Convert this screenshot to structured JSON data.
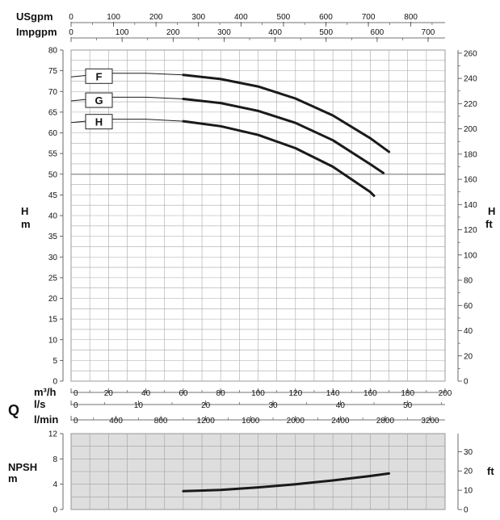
{
  "chart_data": [
    {
      "type": "line",
      "panel": "head",
      "x_unit": "m3/h",
      "xlim": [
        0,
        200
      ],
      "ylim_m": [
        0,
        80
      ],
      "ylim_ft": [
        0,
        260
      ],
      "left_ticks": [
        "0",
        "5",
        "10",
        "15",
        "20",
        "25",
        "30",
        "35",
        "40",
        "45",
        "50",
        "55",
        "60",
        "65",
        "70",
        "75",
        "80"
      ],
      "right_ticks": [
        "0",
        "20",
        "40",
        "60",
        "80",
        "100",
        "120",
        "140",
        "160",
        "180",
        "200",
        "220",
        "240",
        "260"
      ],
      "left_label": [
        "H",
        "m"
      ],
      "right_label": [
        "H",
        "ft"
      ],
      "reference_line_m": 50,
      "series": [
        {
          "name": "F",
          "dashed_x": [
            0,
            20,
            40,
            60
          ],
          "dashed_y": [
            73.5,
            74.4,
            74.4,
            74.0
          ],
          "x": [
            60,
            80,
            100,
            120,
            140,
            160,
            170
          ],
          "y": [
            74.0,
            73.0,
            71.2,
            68.3,
            64.2,
            58.7,
            55.4
          ]
        },
        {
          "name": "G",
          "dashed_x": [
            0,
            20,
            40,
            60
          ],
          "dashed_y": [
            67.7,
            68.6,
            68.6,
            68.2
          ],
          "x": [
            60,
            80,
            100,
            120,
            140,
            160,
            167
          ],
          "y": [
            68.2,
            67.2,
            65.3,
            62.4,
            58.2,
            52.4,
            50.3
          ]
        },
        {
          "name": "H",
          "dashed_x": [
            0,
            20,
            40,
            60
          ],
          "dashed_y": [
            62.5,
            63.3,
            63.3,
            62.8
          ],
          "x": [
            60,
            80,
            100,
            120,
            140,
            160,
            162
          ],
          "y": [
            62.8,
            61.6,
            59.5,
            56.3,
            51.8,
            45.7,
            44.8
          ]
        }
      ]
    },
    {
      "type": "line",
      "panel": "npsh",
      "ylim_m": [
        0,
        12
      ],
      "ylim_ft": [
        0,
        40
      ],
      "left_ticks": [
        "0",
        "4",
        "8",
        "12"
      ],
      "right_ticks": [
        "0",
        "10",
        "20",
        "30"
      ],
      "left_label": [
        "NPSH",
        "m"
      ],
      "right_label": "ft",
      "series": [
        {
          "x": [
            60,
            80,
            100,
            120,
            140,
            160,
            170
          ],
          "y": [
            2.9,
            3.1,
            3.5,
            4.0,
            4.6,
            5.3,
            5.7
          ]
        }
      ]
    }
  ],
  "axes": {
    "usgpm": {
      "label": "USgpm",
      "ticks": [
        "0",
        "100",
        "200",
        "300",
        "400",
        "500",
        "600",
        "700",
        "800"
      ]
    },
    "impgpm": {
      "label": "Impgpm",
      "ticks": [
        "0",
        "100",
        "200",
        "300",
        "400",
        "500",
        "600",
        "700"
      ]
    },
    "q_label": "Q",
    "m3h": {
      "label": "m³/h",
      "ticks": [
        "0",
        "20",
        "40",
        "60",
        "80",
        "100",
        "120",
        "140",
        "160",
        "180",
        "200"
      ]
    },
    "ls": {
      "label": "l/s",
      "ticks": [
        "0",
        "10",
        "20",
        "30",
        "40",
        "50"
      ]
    },
    "lmin": {
      "label": "l/min",
      "ticks": [
        "0",
        "400",
        "800",
        "1200",
        "1600",
        "2000",
        "2400",
        "2800",
        "3200"
      ]
    }
  },
  "colors": {
    "curve": "#1a1a1a",
    "grid": "#a8a8a8",
    "npsh_bg": "#dedede",
    "ref_line": "#888888"
  }
}
